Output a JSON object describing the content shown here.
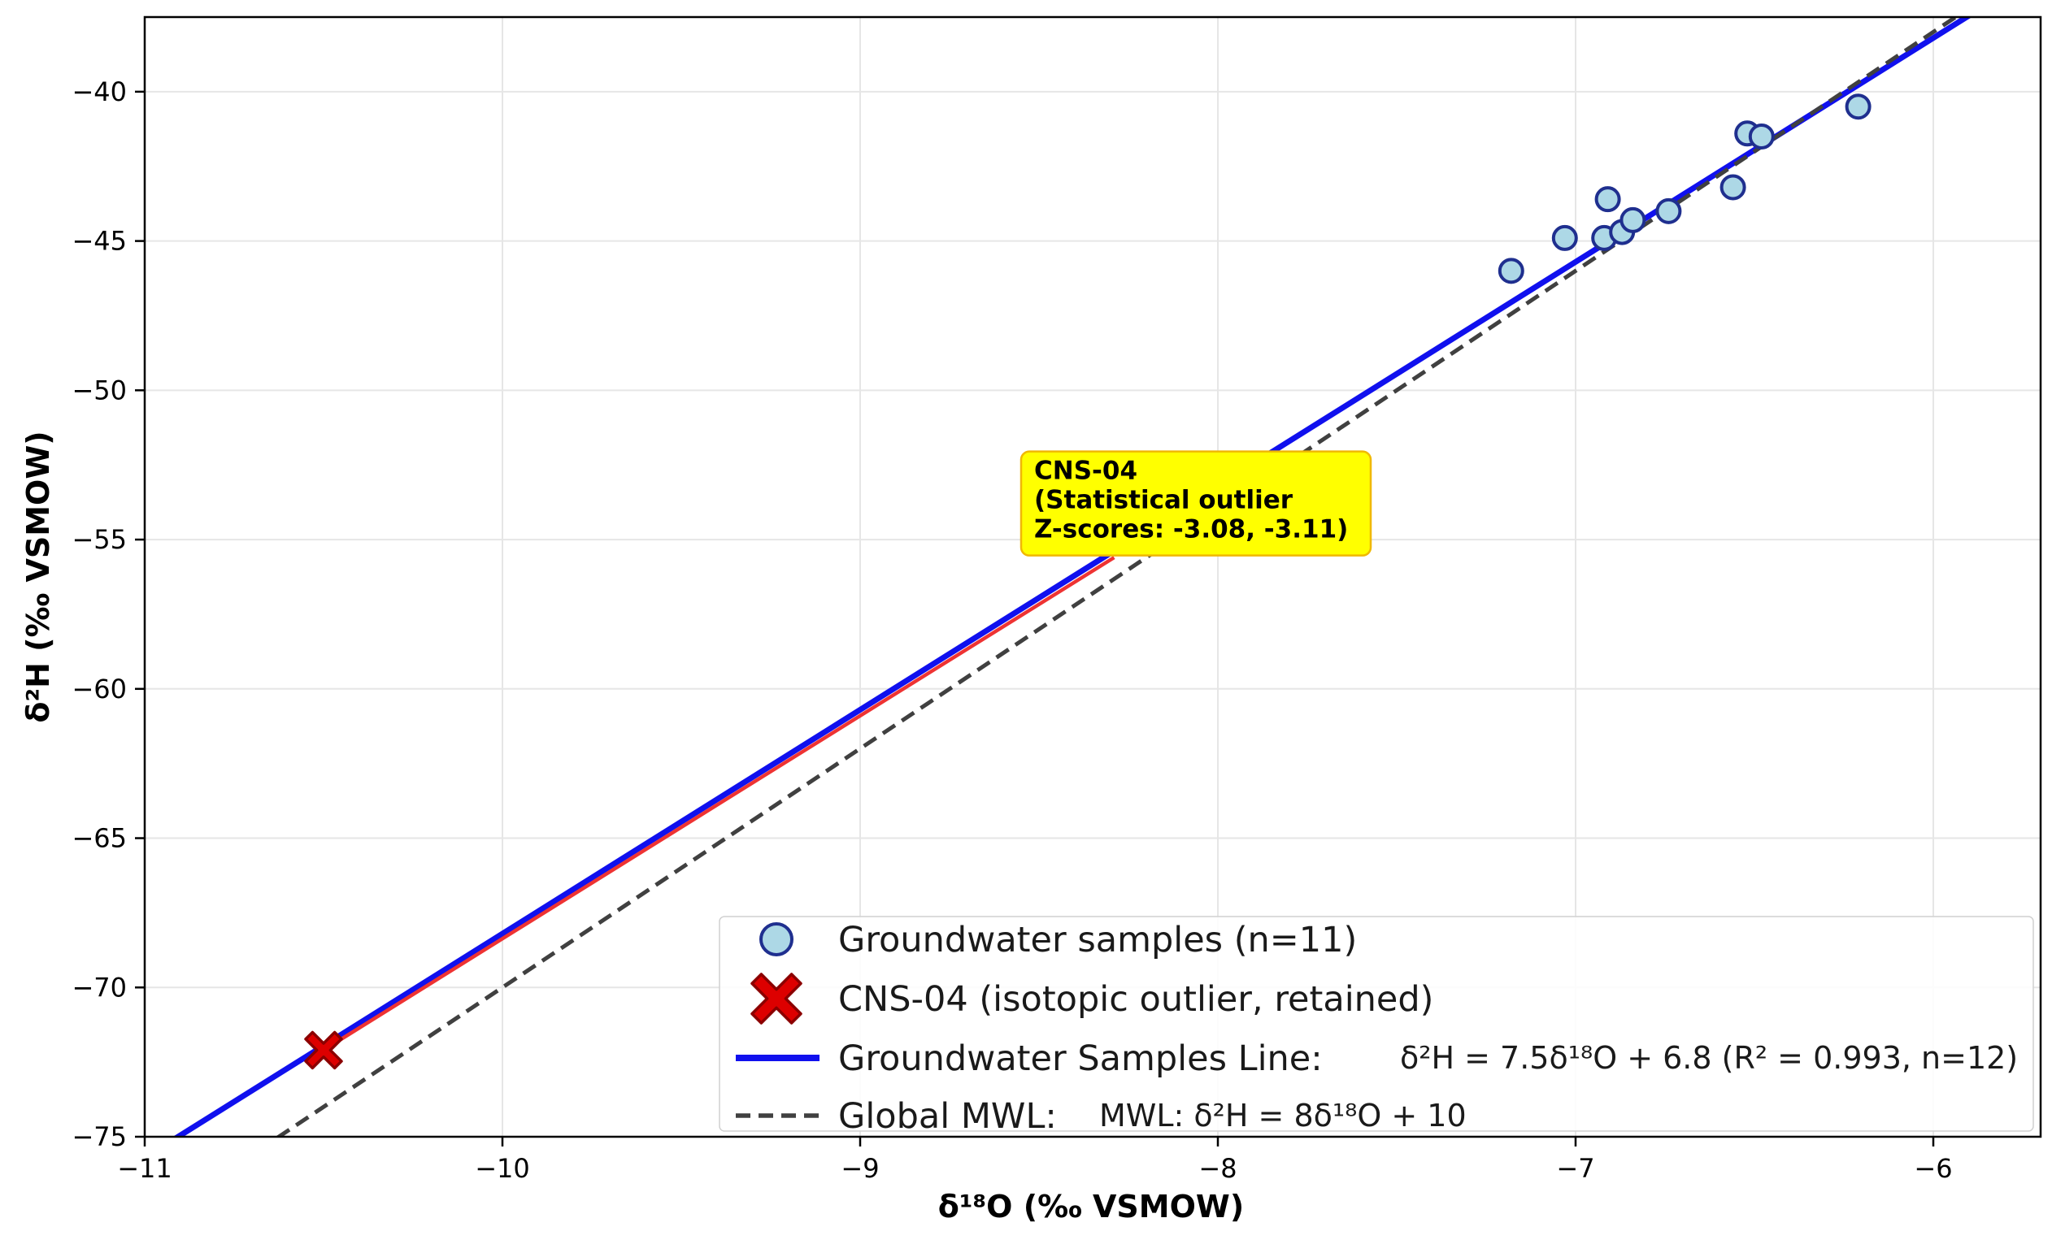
{
  "chart_data": {
    "type": "scatter",
    "xlabel": "δ¹⁸O (‰ VSMOW)",
    "ylabel": "δ²H (‰ VSMOW)",
    "xlim": [
      -11.0,
      -5.7
    ],
    "ylim": [
      -75.0,
      -37.5
    ],
    "xticks": [
      -11,
      -10,
      -9,
      -8,
      -7,
      -6
    ],
    "yticks": [
      -75,
      -70,
      -65,
      -60,
      -55,
      -50,
      -45,
      -40
    ],
    "xtick_labels": [
      "−11",
      "−10",
      "−9",
      "−8",
      "−7",
      "−6"
    ],
    "ytick_labels": [
      "−75",
      "−70",
      "−65",
      "−60",
      "−55",
      "−50",
      "−45",
      "−40"
    ],
    "grid": true,
    "series": [
      {
        "name": "Groundwater samples (n=11)",
        "kind": "scatter",
        "marker": "circle",
        "fill": "#add8e6",
        "stroke": "#1f2f8f",
        "x": [
          -7.18,
          -7.03,
          -6.92,
          -6.91,
          -6.87,
          -6.84,
          -6.74,
          -6.56,
          -6.52,
          -6.48,
          -6.21
        ],
        "y": [
          -46.0,
          -44.9,
          -44.9,
          -43.6,
          -44.7,
          -44.3,
          -44.0,
          -43.2,
          -41.4,
          -41.5,
          -40.5
        ]
      },
      {
        "name": "CNS-04 (isotopic outlier, retained)",
        "kind": "scatter",
        "marker": "x",
        "fill": "#dd0000",
        "stroke": "#8b0000",
        "x": [
          -10.5
        ],
        "y": [
          -72.1
        ]
      },
      {
        "name": "Groundwater Samples Line:",
        "kind": "line",
        "color": "#1010ee",
        "slope": 7.5,
        "intercept": 6.8,
        "x": [
          -11.0,
          -5.7
        ],
        "equation": "δ²H = 7.5δ¹⁸O + 6.8 (R² = 0.993, n=12)"
      },
      {
        "name": "Global MWL:",
        "kind": "line",
        "style": "dashed",
        "color": "#404040",
        "slope": 8,
        "intercept": 10,
        "x": [
          -11.0,
          -5.7
        ],
        "equation": "MWL: δ²H = 8δ¹⁸O + 10"
      }
    ],
    "annotation": {
      "lines": [
        "CNS-04",
        "(Statistical outlier",
        "Z-scores: -3.08, -3.11)"
      ],
      "anchor": [
        -8.55,
        -52.05
      ],
      "arrow_from": [
        -10.5,
        -72.1
      ],
      "arrow_to": [
        -8.29,
        -55.6
      ],
      "box_color": "#ffff00",
      "border_color": "#f0b800",
      "arrow_color": "#ee3333"
    },
    "legend": {
      "placement": "lower-center",
      "items": [
        "Groundwater samples (n=11)",
        "CNS-04 (isotopic outlier, retained)",
        "Groundwater Samples Line:",
        "Global MWL:"
      ]
    }
  }
}
